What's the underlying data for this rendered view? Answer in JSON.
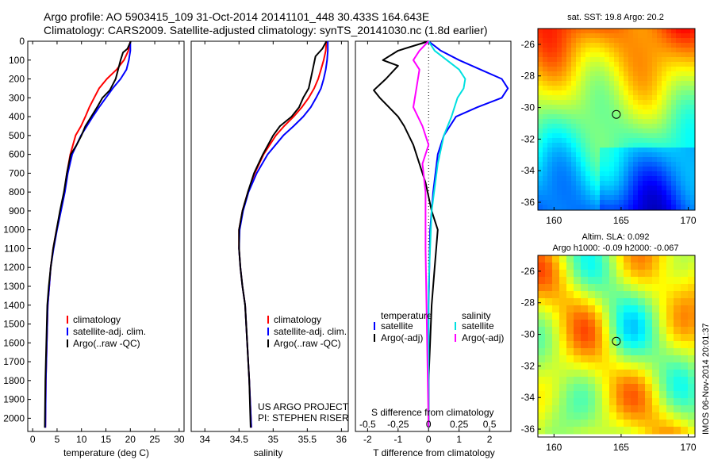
{
  "header": {
    "line1": "Argo profile: AO 5903415_109 31-Oct-2014 20141101_448 30.433S 164.643E",
    "line2": "Climatology: CARS2009. Satellite-adjusted climatology: synTS_20141030.nc (1.8d earlier)"
  },
  "side_label": "IMOS 06-Nov-2014 20:01:37",
  "credits": {
    "line1": "US ARGO PROJECT",
    "line2": "PI: STEPHEN RISER"
  },
  "chart_data": [
    {
      "id": "temperature",
      "type": "line",
      "xlabel": "temperature (deg C)",
      "ylabel": "",
      "xlim": [
        -1,
        31
      ],
      "ylim": [
        2070,
        0
      ],
      "xticks": [
        0,
        5,
        10,
        15,
        20,
        25,
        30
      ],
      "yticks": [
        0,
        100,
        200,
        300,
        400,
        500,
        600,
        700,
        800,
        900,
        1000,
        1100,
        1200,
        1300,
        1400,
        1500,
        1600,
        1700,
        1800,
        1900,
        2000
      ],
      "legend": [
        "climatology",
        "satellite-adj. clim.",
        "Argo(..raw -QC)"
      ],
      "series": [
        {
          "name": "climatology",
          "color": "#ff0000",
          "x": [
            20.0,
            19.6,
            18.7,
            17.2,
            15.2,
            13.6,
            12.6,
            11.6,
            10.8,
            9.9,
            8.8,
            7.7,
            7.0,
            6.5,
            5.7,
            4.9,
            4.2,
            3.7,
            3.4,
            3.1,
            2.9,
            2.7,
            2.6
          ],
          "y": [
            0,
            50,
            100,
            150,
            200,
            250,
            300,
            350,
            400,
            450,
            500,
            600,
            700,
            800,
            900,
            1000,
            1100,
            1200,
            1300,
            1400,
            1600,
            1800,
            2050
          ]
        },
        {
          "name": "satellite-adj. clim.",
          "color": "#0000ff",
          "x": [
            20.0,
            20.0,
            19.7,
            19.2,
            18.0,
            16.4,
            15.0,
            13.6,
            12.3,
            11.1,
            9.9,
            8.1,
            7.2,
            6.6,
            5.8,
            5.0,
            4.3,
            3.7,
            3.4,
            3.1,
            2.9,
            2.7,
            2.6
          ],
          "y": [
            0,
            50,
            100,
            150,
            200,
            250,
            300,
            350,
            400,
            450,
            500,
            600,
            700,
            800,
            900,
            1000,
            1100,
            1200,
            1300,
            1400,
            1600,
            1800,
            2050
          ]
        },
        {
          "name": "Argo(..raw -QC)",
          "color": "#000000",
          "x": [
            20.1,
            19.4,
            18.5,
            18.0,
            17.5,
            17.0,
            16.4,
            15.8,
            14.3,
            13.2,
            12.0,
            10.8,
            10.0,
            9.0,
            7.8,
            7.0,
            6.4,
            5.6,
            4.9,
            4.2,
            3.7,
            3.3,
            3.0,
            2.8,
            2.6,
            2.5
          ],
          "y": [
            0,
            40,
            60,
            100,
            150,
            200,
            230,
            260,
            300,
            350,
            400,
            450,
            500,
            550,
            600,
            700,
            800,
            900,
            1000,
            1100,
            1200,
            1300,
            1400,
            1600,
            1800,
            2050
          ]
        }
      ]
    },
    {
      "id": "salinity",
      "type": "line",
      "xlabel": "salinity",
      "ylabel": "",
      "xlim": [
        33.8,
        36.1
      ],
      "ylim": [
        2070,
        0
      ],
      "xticks": [
        34,
        34.5,
        35,
        35.5,
        36
      ],
      "legend": [
        "climatology",
        "satellite-adj. clim.",
        "Argo(..raw -QC)"
      ],
      "series": [
        {
          "name": "climatology",
          "color": "#ff0000",
          "x": [
            35.78,
            35.77,
            35.74,
            35.7,
            35.66,
            35.6,
            35.52,
            35.42,
            35.3,
            35.16,
            35.04,
            34.86,
            34.73,
            34.63,
            34.55,
            34.5,
            34.5,
            34.52,
            34.55,
            34.59,
            34.62,
            34.65,
            34.68
          ],
          "y": [
            0,
            50,
            100,
            150,
            200,
            250,
            300,
            350,
            400,
            450,
            500,
            600,
            700,
            800,
            900,
            1000,
            1100,
            1200,
            1300,
            1400,
            1600,
            1800,
            2050
          ]
        },
        {
          "name": "satellite-adj. clim.",
          "color": "#0000ff",
          "x": [
            35.8,
            35.8,
            35.79,
            35.77,
            35.74,
            35.7,
            35.63,
            35.55,
            35.44,
            35.3,
            35.15,
            34.92,
            34.76,
            34.64,
            34.56,
            34.51,
            34.5,
            34.52,
            34.55,
            34.59,
            34.62,
            34.65,
            34.68
          ],
          "y": [
            0,
            50,
            100,
            150,
            200,
            250,
            300,
            350,
            400,
            450,
            500,
            600,
            700,
            800,
            900,
            1000,
            1100,
            1200,
            1300,
            1400,
            1600,
            1800,
            2050
          ]
        },
        {
          "name": "Argo(..raw -QC)",
          "color": "#000000",
          "x": [
            35.78,
            35.72,
            35.62,
            35.58,
            35.55,
            35.52,
            35.44,
            35.38,
            35.27,
            35.1,
            35.0,
            34.85,
            34.72,
            34.63,
            34.55,
            34.5,
            34.5,
            34.52,
            34.55,
            34.59,
            34.62,
            34.65,
            34.67
          ],
          "y": [
            0,
            40,
            80,
            150,
            200,
            250,
            300,
            350,
            400,
            450,
            500,
            600,
            700,
            800,
            900,
            1000,
            1100,
            1200,
            1300,
            1400,
            1600,
            1800,
            2050
          ]
        }
      ]
    },
    {
      "id": "difference",
      "type": "line",
      "xlabel": "T difference from climatology",
      "ylabel": "",
      "top_label": "S difference from climatology",
      "xlim": [
        -2.4,
        2.7
      ],
      "ylim": [
        2070,
        0
      ],
      "xticks": [
        -2,
        -1,
        0,
        1,
        2
      ],
      "s_ticks": [
        -0.5,
        -0.25,
        0,
        0.25,
        0.5
      ],
      "s_tick_labels": [
        "-0.5",
        "-0.25",
        "0",
        "0.25",
        "0.5"
      ],
      "s_scale": 4,
      "legend": {
        "temperature_title": "temperature",
        "salinity_title": "salinity",
        "temperature": [
          "satellite",
          "Argo(-adj)"
        ],
        "salinity": [
          "satellite",
          "Argo(-adj)"
        ]
      },
      "series": [
        {
          "name": "temperature satellite",
          "color": "#0000ff",
          "x": [
            0.0,
            0.4,
            1.0,
            1.7,
            2.4,
            2.6,
            2.4,
            1.6,
            0.9,
            0.5,
            0.3,
            0.15,
            0.05,
            0.0,
            0.0
          ],
          "y": [
            0,
            50,
            100,
            150,
            200,
            250,
            300,
            350,
            400,
            500,
            600,
            800,
            1000,
            1400,
            2050
          ]
        },
        {
          "name": "temperature Argo(-adj)",
          "color": "#000000",
          "x": [
            0.0,
            -1.0,
            -1.5,
            -1.0,
            -1.4,
            -1.8,
            -1.6,
            -1.3,
            -1.0,
            -0.8,
            -0.5,
            -0.3,
            -0.1,
            0.1,
            0.3,
            0.2,
            0.1,
            0.0,
            0.0
          ],
          "y": [
            0,
            50,
            100,
            130,
            200,
            260,
            300,
            350,
            400,
            450,
            550,
            650,
            750,
            900,
            1000,
            1200,
            1400,
            1800,
            2050
          ]
        },
        {
          "name": "salinity satellite",
          "color": "#00e0e0",
          "x": [
            0.0,
            0.2,
            0.6,
            1.0,
            1.2,
            1.15,
            0.95,
            0.75,
            0.5,
            0.3,
            0.1,
            0.0,
            0.0
          ],
          "y": [
            0,
            50,
            100,
            150,
            200,
            250,
            300,
            400,
            500,
            650,
            900,
            1300,
            2050
          ]
        },
        {
          "name": "salinity Argo(-adj)",
          "color": "#ff00ff",
          "x": [
            0.0,
            -0.3,
            -0.5,
            -0.3,
            -0.4,
            -0.5,
            -0.2,
            0.0,
            -0.2,
            -0.1,
            -0.1,
            0.0
          ],
          "y": [
            0,
            50,
            100,
            150,
            250,
            350,
            450,
            550,
            650,
            800,
            1100,
            2050
          ]
        }
      ]
    },
    {
      "id": "sst_map",
      "type": "heatmap",
      "title": "sat. SST: 19.8 Argo: 20.2",
      "xlim": [
        158.8,
        170.5
      ],
      "ylim": [
        -36.5,
        -25.0
      ],
      "xticks": [
        160,
        165,
        170
      ],
      "yticks": [
        -26,
        -28,
        -30,
        -32,
        -34,
        -36
      ],
      "marker": {
        "lon": 164.643,
        "lat": -30.433
      }
    },
    {
      "id": "sla_map",
      "type": "heatmap",
      "title": "Altim. SLA: 0.092",
      "subtitle": "Argo h1000: -0.09 h2000: -0.067",
      "xlim": [
        158.8,
        170.5
      ],
      "ylim": [
        -36.5,
        -25.0
      ],
      "xticks": [
        160,
        165,
        170
      ],
      "yticks": [
        -26,
        -28,
        -30,
        -32,
        -34,
        -36
      ],
      "marker": {
        "lon": 164.643,
        "lat": -30.433
      }
    }
  ]
}
